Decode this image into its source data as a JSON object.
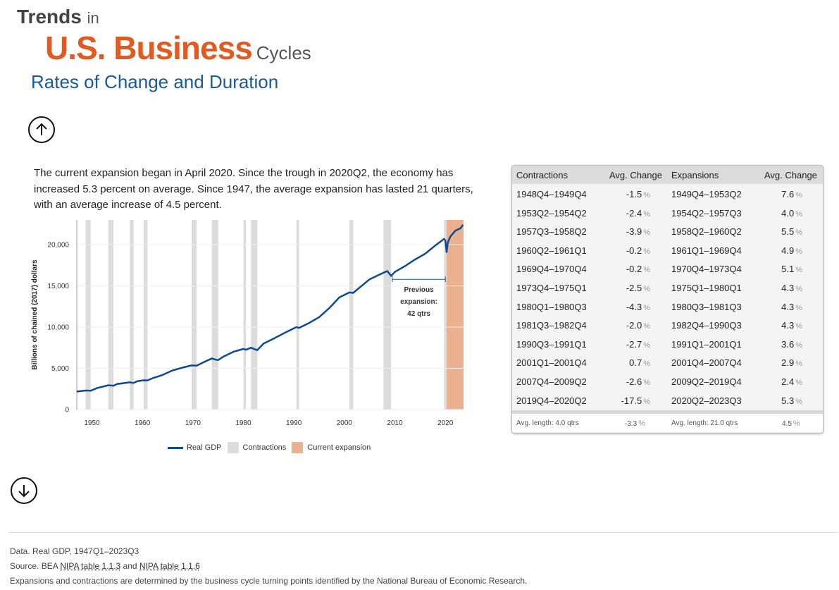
{
  "header": {
    "trends": "Trends",
    "in": "in",
    "business": "U.S. Business",
    "cycles": "Cycles",
    "subtitle": "Rates of Change and Duration"
  },
  "nav": {
    "up_icon": "arrow-up-icon",
    "down_icon": "arrow-down-icon"
  },
  "intro": "The current expansion began in April 2020. Since the trough in 2020Q2, the economy has increased 5.3 percent on average. Since 1947, the average expansion has lasted 21 quarters, with an average increase of 4.5 percent.",
  "chart_data": {
    "type": "line",
    "ylabel": "Billions of chained (2017) dollars",
    "xlim": [
      1947,
      2023.6
    ],
    "ylim": [
      0,
      23000
    ],
    "yticks": [
      0,
      5000,
      10000,
      15000,
      20000
    ],
    "ytick_labels": [
      "0",
      "5,000",
      "10,000",
      "15,000",
      "20,000"
    ],
    "xticks": [
      1950,
      1960,
      1970,
      1980,
      1990,
      2000,
      2010,
      2020
    ],
    "xtick_labels": [
      "1950",
      "1960",
      "1970",
      "1980",
      "1990",
      "2000",
      "2010",
      "2020"
    ],
    "series": [
      {
        "name": "Real GDP",
        "color": "#0d4a93",
        "x": [
          1947.0,
          1948.75,
          1949.75,
          1951,
          1953.25,
          1954.25,
          1955,
          1957.5,
          1958.25,
          1959,
          1960.25,
          1961.0,
          1962,
          1964,
          1966,
          1968,
          1969.75,
          1970.75,
          1972,
          1973.75,
          1974.5,
          1975.0,
          1976,
          1978,
          1980.0,
          1980.5,
          1981.5,
          1982.75,
          1984,
          1986,
          1988,
          1990.5,
          1991.0,
          1993,
          1995,
          1997,
          1999,
          2001.0,
          2001.75,
          2003,
          2005,
          2007.75,
          2008.5,
          2009.25,
          2010,
          2012,
          2014,
          2016,
          2018,
          2019.75,
          2020.0,
          2020.25,
          2020.5,
          2021,
          2022,
          2023.0,
          2023.5
        ],
        "y": [
          2180,
          2310,
          2280,
          2600,
          2950,
          2880,
          3100,
          3300,
          3220,
          3450,
          3550,
          3540,
          3800,
          4200,
          4750,
          5100,
          5350,
          5330,
          5700,
          6200,
          6050,
          6000,
          6400,
          7000,
          7350,
          7250,
          7500,
          7200,
          8000,
          8600,
          9250,
          10000,
          9900,
          10500,
          11200,
          12300,
          13600,
          14200,
          14150,
          14800,
          15800,
          16600,
          16800,
          16200,
          16700,
          17400,
          18200,
          18900,
          19900,
          20700,
          20500,
          19100,
          20300,
          21000,
          21700,
          22000,
          22400
        ]
      }
    ],
    "contractions": [
      [
        1948.75,
        1949.75
      ],
      [
        1953.25,
        1954.25
      ],
      [
        1957.5,
        1958.25
      ],
      [
        1960.25,
        1961.0
      ],
      [
        1969.75,
        1970.75
      ],
      [
        1973.75,
        1975.0
      ],
      [
        1980.0,
        1980.5
      ],
      [
        1981.5,
        1982.75
      ],
      [
        1990.5,
        1991.0
      ],
      [
        2001.0,
        2001.75
      ],
      [
        2007.75,
        2009.25
      ],
      [
        2019.75,
        2020.25
      ]
    ],
    "current_expansion": [
      2020.25,
      2023.6
    ],
    "contraction_color": "#dcdcdc",
    "expansion_color": "#eab08f",
    "annotation": {
      "lines": [
        "Previous",
        "expansion:",
        "42 qtrs"
      ],
      "x_range": [
        2009.5,
        2020.0
      ],
      "y": 15800
    },
    "legend": [
      "Real GDP",
      "Contractions",
      "Current expansion"
    ]
  },
  "table": {
    "headers": [
      "Contractions",
      "Avg. Change",
      "Expansions",
      "Avg. Change"
    ],
    "pct": "%",
    "rows": [
      {
        "con": "1948Q4–1949Q4",
        "cc": "-1.5",
        "exp": "1949Q4–1953Q2",
        "ec": "7.6"
      },
      {
        "con": "1953Q2–1954Q2",
        "cc": "-2.4",
        "exp": "1954Q2–1957Q3",
        "ec": "4.0"
      },
      {
        "con": "1957Q3–1958Q2",
        "cc": "-3.9",
        "exp": "1958Q2–1960Q2",
        "ec": "5.5"
      },
      {
        "con": "1960Q2–1961Q1",
        "cc": "-0.2",
        "exp": "1961Q1–1969Q4",
        "ec": "4.9"
      },
      {
        "con": "1969Q4–1970Q4",
        "cc": "-0.2",
        "exp": "1970Q4–1973Q4",
        "ec": "5.1"
      },
      {
        "con": "1973Q4–1975Q1",
        "cc": "-2.5",
        "exp": "1975Q1–1980Q1",
        "ec": "4.3"
      },
      {
        "con": "1980Q1–1980Q3",
        "cc": "-4.3",
        "exp": "1980Q3–1981Q3",
        "ec": "4.3"
      },
      {
        "con": "1981Q3–1982Q4",
        "cc": "-2.0",
        "exp": "1982Q4–1990Q3",
        "ec": "4.3"
      },
      {
        "con": "1990Q3–1991Q1",
        "cc": "-2.7",
        "exp": "1991Q1–2001Q1",
        "ec": "3.6"
      },
      {
        "con": "2001Q1–2001Q4",
        "cc": "0.7",
        "exp": "2001Q4–2007Q4",
        "ec": "2.9"
      },
      {
        "con": "2007Q4–2009Q2",
        "cc": "-2.6",
        "exp": "2009Q2–2019Q4",
        "ec": "2.4"
      },
      {
        "con": "2019Q4–2020Q2",
        "cc": "-17.5",
        "exp": "2020Q2–2023Q3",
        "ec": "5.3"
      }
    ],
    "footer": {
      "avg_con_len": "Avg. length: 4.0 qtrs",
      "avg_con_chg": "-3.3",
      "avg_exp_len": "Avg. length: 21.0 qtrs",
      "avg_exp_chg": "4.5"
    }
  },
  "notes": {
    "data": "Data. Real GDP, 1947Q1–2023Q3",
    "source_prefix": "Source. BEA ",
    "link1": "NIPA table 1.1.3",
    "and": " and ",
    "link2": "NIPA table 1.1.6",
    "nber": "Expansions and contractions are determined by the business cycle turning points identified by the National Bureau of Economic Research."
  }
}
